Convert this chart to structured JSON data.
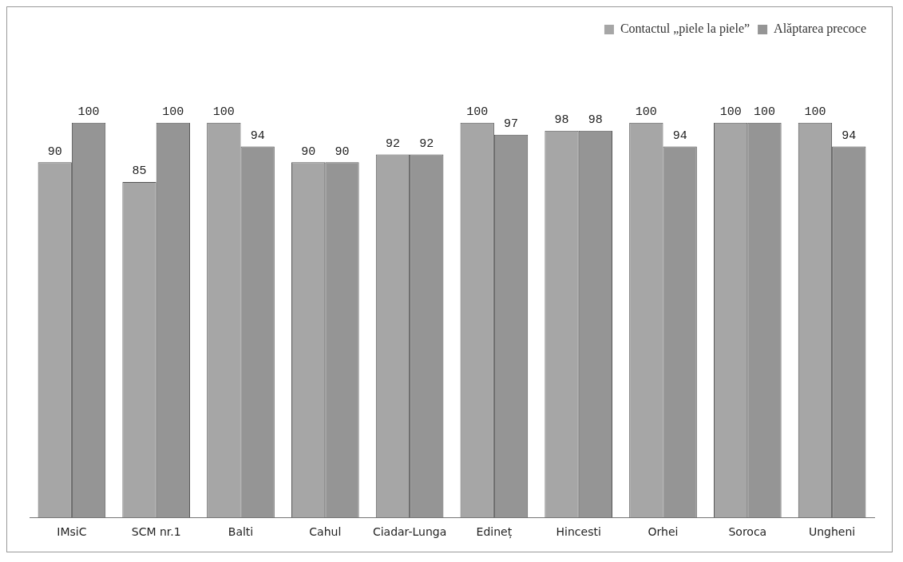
{
  "chart_data": {
    "type": "bar",
    "categories": [
      "IMsiC",
      "SCM nr.1",
      "Balti",
      "Cahul",
      "Ciadar-Lunga",
      "Edineț",
      "Hincesti",
      "Orhei",
      "Soroca",
      "Ungheni"
    ],
    "series": [
      {
        "name": "Contactul „piele la piele”",
        "color": "#a6a6a6",
        "values": [
          90,
          85,
          100,
          90,
          92,
          100,
          98,
          100,
          100,
          100
        ]
      },
      {
        "name": "Alăptarea precoce",
        "color": "#959595",
        "values": [
          100,
          100,
          94,
          90,
          92,
          97,
          98,
          94,
          100,
          94
        ]
      }
    ],
    "data_labels": true,
    "legend": "top right",
    "grid": false,
    "tick_labels": "x"
  }
}
